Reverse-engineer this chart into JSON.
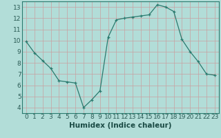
{
  "x": [
    0,
    1,
    2,
    3,
    4,
    5,
    6,
    7,
    8,
    9,
    10,
    11,
    12,
    13,
    14,
    15,
    16,
    17,
    18,
    19,
    20,
    21,
    22,
    23
  ],
  "y": [
    9.9,
    8.9,
    8.2,
    7.5,
    6.4,
    6.3,
    6.2,
    4.0,
    4.7,
    5.5,
    10.3,
    11.85,
    12.0,
    12.1,
    12.2,
    12.3,
    13.2,
    13.0,
    12.6,
    10.1,
    9.0,
    8.1,
    7.0,
    6.9
  ],
  "line_color": "#2a7a6e",
  "marker": "+",
  "marker_color": "#2a7a6e",
  "bg_color": "#b2ddd8",
  "grid_color": "#c8a0a0",
  "xlabel": "Humidex (Indice chaleur)",
  "xlim": [
    -0.5,
    23.5
  ],
  "ylim": [
    3.5,
    13.5
  ],
  "xticks": [
    0,
    1,
    2,
    3,
    4,
    5,
    6,
    7,
    8,
    9,
    10,
    11,
    12,
    13,
    14,
    15,
    16,
    17,
    18,
    19,
    20,
    21,
    22,
    23
  ],
  "yticks": [
    4,
    5,
    6,
    7,
    8,
    9,
    10,
    11,
    12,
    13
  ],
  "xlabel_fontsize": 7.5,
  "tick_fontsize": 6.5
}
